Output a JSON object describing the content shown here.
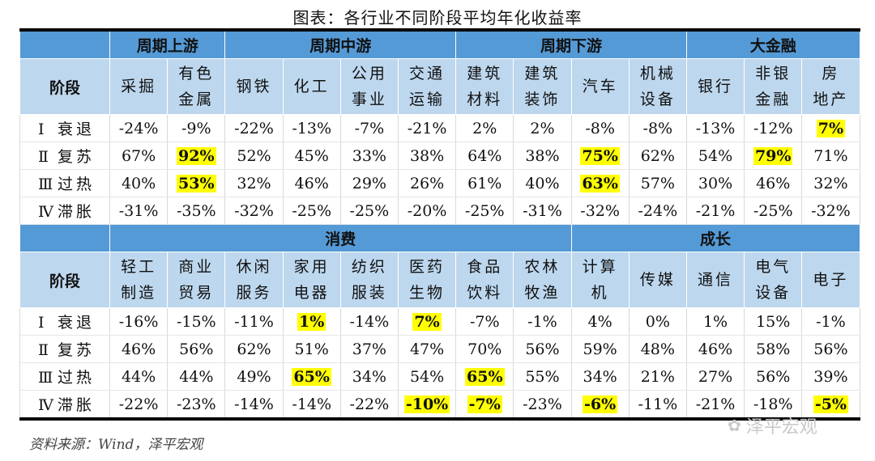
{
  "title": "图表：各行业不同阶段平均年化收益率",
  "source": "资料来源：Wind，泽平宏观",
  "watermark": "泽平宏观",
  "stage_label": "阶段",
  "section1": {
    "groups": [
      {
        "name": "周期上游",
        "span": 2
      },
      {
        "name": "周期中游",
        "span": 4
      },
      {
        "name": "周期下游",
        "span": 4
      },
      {
        "name": "大金融",
        "span": 3
      }
    ],
    "columns": [
      [
        "采掘"
      ],
      [
        "有色",
        "金属"
      ],
      [
        "钢铁"
      ],
      [
        "化工"
      ],
      [
        "公用",
        "事业"
      ],
      [
        "交通",
        "运输"
      ],
      [
        "建筑",
        "材料"
      ],
      [
        "建筑",
        "装饰"
      ],
      [
        "汽车"
      ],
      [
        "机械",
        "设备"
      ],
      [
        "银行"
      ],
      [
        "非银",
        "金融"
      ],
      [
        "房",
        "地产"
      ]
    ],
    "rows": [
      {
        "roman": "Ⅰ",
        "name": "衰退",
        "values": [
          "-24%",
          "-9%",
          "-22%",
          "-13%",
          "-7%",
          "-21%",
          "2%",
          "2%",
          "-8%",
          "-8%",
          "-13%",
          "-12%",
          "7%"
        ],
        "highlight": [
          12
        ]
      },
      {
        "roman": "Ⅱ",
        "name": "复苏",
        "values": [
          "67%",
          "92%",
          "52%",
          "45%",
          "33%",
          "38%",
          "64%",
          "38%",
          "75%",
          "62%",
          "54%",
          "79%",
          "71%"
        ],
        "highlight": [
          1,
          8,
          11
        ]
      },
      {
        "roman": "Ⅲ",
        "name": "过热",
        "values": [
          "40%",
          "53%",
          "32%",
          "46%",
          "29%",
          "26%",
          "61%",
          "40%",
          "63%",
          "57%",
          "30%",
          "46%",
          "32%"
        ],
        "highlight": [
          1,
          8
        ]
      },
      {
        "roman": "Ⅳ",
        "name": "滞胀",
        "values": [
          "-31%",
          "-35%",
          "-32%",
          "-25%",
          "-25%",
          "-20%",
          "-25%",
          "-31%",
          "-32%",
          "-24%",
          "-21%",
          "-25%",
          "-32%"
        ],
        "highlight": []
      }
    ]
  },
  "section2": {
    "groups": [
      {
        "name": "消费",
        "span": 8
      },
      {
        "name": "成长",
        "span": 5
      }
    ],
    "columns": [
      [
        "轻工",
        "制造"
      ],
      [
        "商业",
        "贸易"
      ],
      [
        "休闲",
        "服务"
      ],
      [
        "家用",
        "电器"
      ],
      [
        "纺织",
        "服装"
      ],
      [
        "医药",
        "生物"
      ],
      [
        "食品",
        "饮料"
      ],
      [
        "农林",
        "牧渔"
      ],
      [
        "计算",
        "机"
      ],
      [
        "传媒"
      ],
      [
        "通信"
      ],
      [
        "电气",
        "设备"
      ],
      [
        "电子"
      ]
    ],
    "rows": [
      {
        "roman": "Ⅰ",
        "name": "衰退",
        "values": [
          "-16%",
          "-15%",
          "-11%",
          "1%",
          "-14%",
          "7%",
          "-7%",
          "-1%",
          "4%",
          "0%",
          "1%",
          "15%",
          "-1%"
        ],
        "highlight": [
          3,
          5
        ]
      },
      {
        "roman": "Ⅱ",
        "name": "复苏",
        "values": [
          "46%",
          "56%",
          "62%",
          "51%",
          "37%",
          "47%",
          "70%",
          "56%",
          "59%",
          "48%",
          "46%",
          "58%",
          "56%"
        ],
        "highlight": []
      },
      {
        "roman": "Ⅲ",
        "name": "过热",
        "values": [
          "44%",
          "44%",
          "49%",
          "65%",
          "34%",
          "54%",
          "65%",
          "55%",
          "34%",
          "21%",
          "27%",
          "56%",
          "39%"
        ],
        "highlight": [
          3,
          6
        ]
      },
      {
        "roman": "Ⅳ",
        "name": "滞胀",
        "values": [
          "-22%",
          "-23%",
          "-14%",
          "-14%",
          "-22%",
          "-10%",
          "-7%",
          "-23%",
          "-6%",
          "-11%",
          "-21%",
          "-18%",
          "-5%"
        ],
        "highlight": [
          5,
          6,
          8,
          12
        ]
      }
    ]
  }
}
